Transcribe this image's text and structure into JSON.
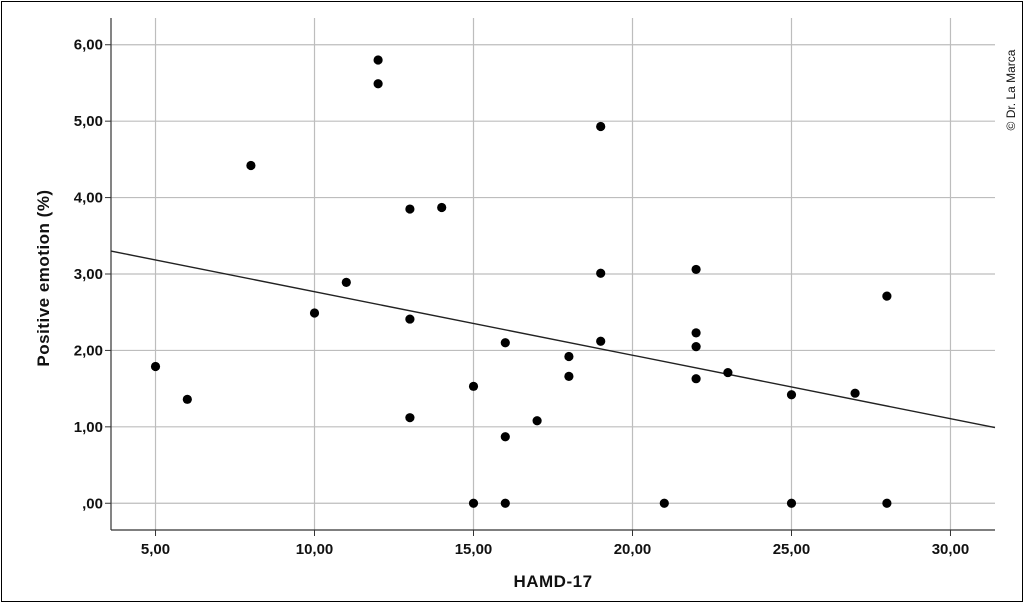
{
  "chart_data": {
    "type": "scatter",
    "xlabel": "HAMD-17",
    "ylabel": "Positive emotion (%)",
    "xlim": [
      3.6,
      31.4
    ],
    "ylim": [
      -0.35,
      6.35
    ],
    "x_ticks": [
      5,
      10,
      15,
      20,
      25,
      30
    ],
    "x_tick_labels": [
      "5,00",
      "10,00",
      "15,00",
      "20,00",
      "25,00",
      "30,00"
    ],
    "y_ticks": [
      0,
      1,
      2,
      3,
      4,
      5,
      6
    ],
    "y_tick_labels": [
      ",00",
      "1,00",
      "2,00",
      "3,00",
      "4,00",
      "5,00",
      "6,00"
    ],
    "grid": true,
    "points": [
      {
        "x": 5,
        "y": 1.79
      },
      {
        "x": 6,
        "y": 1.36
      },
      {
        "x": 8,
        "y": 4.42
      },
      {
        "x": 10,
        "y": 2.49
      },
      {
        "x": 11,
        "y": 2.89
      },
      {
        "x": 12,
        "y": 5.8
      },
      {
        "x": 12,
        "y": 5.49
      },
      {
        "x": 13,
        "y": 3.85
      },
      {
        "x": 13,
        "y": 2.41
      },
      {
        "x": 13,
        "y": 1.12
      },
      {
        "x": 14,
        "y": 3.87
      },
      {
        "x": 15,
        "y": 1.53
      },
      {
        "x": 15,
        "y": 0
      },
      {
        "x": 16,
        "y": 2.1
      },
      {
        "x": 16,
        "y": 0.87
      },
      {
        "x": 16,
        "y": 0
      },
      {
        "x": 17,
        "y": 1.08
      },
      {
        "x": 18,
        "y": 1.92
      },
      {
        "x": 18,
        "y": 1.66
      },
      {
        "x": 19,
        "y": 4.93
      },
      {
        "x": 19,
        "y": 3.01
      },
      {
        "x": 19,
        "y": 2.12
      },
      {
        "x": 21,
        "y": 0
      },
      {
        "x": 22,
        "y": 3.06
      },
      {
        "x": 22,
        "y": 2.23
      },
      {
        "x": 22,
        "y": 2.05
      },
      {
        "x": 22,
        "y": 1.63
      },
      {
        "x": 23,
        "y": 1.71
      },
      {
        "x": 25,
        "y": 1.42
      },
      {
        "x": 25,
        "y": 0
      },
      {
        "x": 27,
        "y": 1.44
      },
      {
        "x": 28,
        "y": 2.71
      },
      {
        "x": 28,
        "y": 0
      }
    ],
    "fit_line": {
      "x": [
        3.6,
        31.4
      ],
      "y": [
        3.3,
        0.99
      ]
    },
    "colors": {
      "points": "#000000",
      "fit_line": "#222222",
      "grid": "#bdbdbd",
      "axis": "#333333"
    }
  },
  "watermark": "© Dr. La Marca"
}
